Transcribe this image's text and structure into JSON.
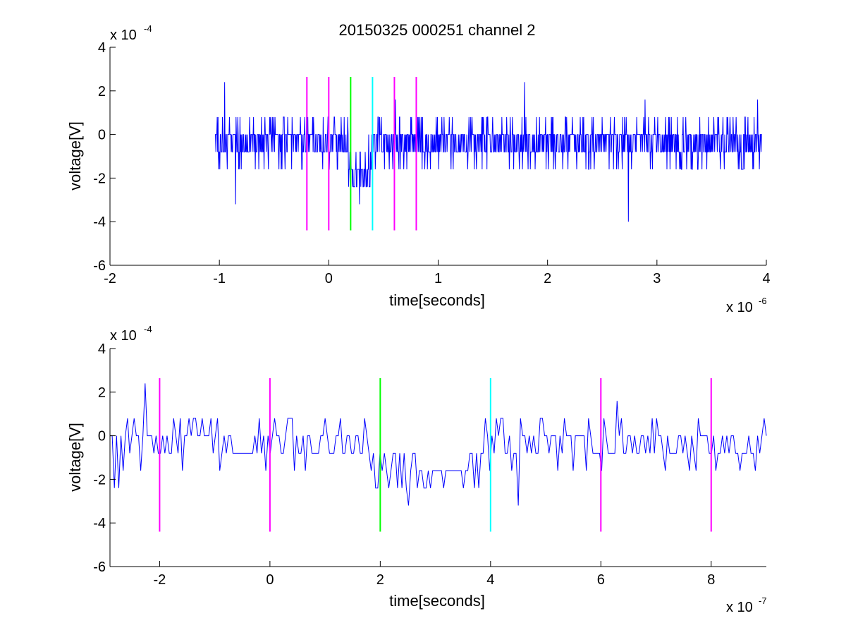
{
  "chart_data": [
    {
      "type": "line",
      "title": "20150325 000251 channel 2",
      "xlabel": "time[seconds]",
      "ylabel": "voltage[V]",
      "x_multiplier_base": "x 10",
      "x_multiplier_exp": "-6",
      "y_multiplier_base": "x 10",
      "y_multiplier_exp": "-4",
      "xlim": [
        -2e-06,
        4e-06
      ],
      "ylim": [
        -0.0006,
        0.0004
      ],
      "xticks": [
        -2e-06,
        -1e-06,
        0,
        1e-06,
        2e-06,
        3e-06,
        4e-06
      ],
      "xtick_labels": [
        "-2",
        "-1",
        "0",
        "1",
        "2",
        "3",
        "4"
      ],
      "yticks": [
        -0.0006,
        -0.0004,
        -0.0002,
        0,
        0.0002,
        0.0004
      ],
      "ytick_labels": [
        "-6",
        "-4",
        "-2",
        "0",
        "2",
        "4"
      ],
      "grid": false,
      "signal": {
        "color": "#0000ff",
        "x_start": -1.04e-06,
        "x_end": 3.96e-06,
        "quantization_step": 8e-05,
        "dip_start": 1.8e-07,
        "dip_end": 3.9e-07,
        "notable_points": [
          {
            "x": -9.5e-07,
            "y": 0.00024
          },
          {
            "x": -8.5e-07,
            "y": -0.00032
          },
          {
            "x": 2.8e-07,
            "y": -0.00032
          },
          {
            "x": 1.79e-06,
            "y": 0.00024
          },
          {
            "x": 2.74e-06,
            "y": -0.0004
          },
          {
            "x": 3.92e-06,
            "y": 0.00016
          }
        ]
      },
      "markers": [
        {
          "x": -2e-07,
          "color": "#ff00ff"
        },
        {
          "x": 0,
          "color": "#ff00ff"
        },
        {
          "x": 2e-07,
          "color": "#00ff00"
        },
        {
          "x": 4e-07,
          "color": "#00ffff"
        },
        {
          "x": 6e-07,
          "color": "#ff00ff"
        },
        {
          "x": 8e-07,
          "color": "#ff00ff"
        }
      ],
      "marker_range": [
        -0.00044,
        0.000264
      ]
    },
    {
      "type": "line",
      "title": "",
      "xlabel": "time[seconds]",
      "ylabel": "voltage[V]",
      "x_multiplier_base": "x 10",
      "x_multiplier_exp": "-7",
      "y_multiplier_base": "x 10",
      "y_multiplier_exp": "-4",
      "xlim": [
        -2.9e-07,
        9e-07
      ],
      "ylim": [
        -0.0006,
        0.0004
      ],
      "xticks": [
        -2e-07,
        0,
        2e-07,
        4e-07,
        6e-07,
        8e-07
      ],
      "xtick_labels": [
        "-2",
        "0",
        "2",
        "4",
        "6",
        "8"
      ],
      "yticks": [
        -0.0006,
        -0.0004,
        -0.0002,
        0,
        0.0002,
        0.0004
      ],
      "ytick_labels": [
        "-6",
        "-4",
        "-2",
        "0",
        "2",
        "4"
      ],
      "grid": false,
      "signal": {
        "color": "#0000ff",
        "x_start": -2.9e-07,
        "x_end": 9e-07,
        "quantization_step": 8e-05,
        "dip_start": 1.8e-07,
        "dip_end": 3.9e-07,
        "notable_points": [
          {
            "x": -2.76e-07,
            "y": -0.00024
          },
          {
            "x": -2.27e-07,
            "y": 0.00024
          },
          {
            "x": 2.5e-07,
            "y": -0.00032
          },
          {
            "x": 4.5e-07,
            "y": -0.00032
          },
          {
            "x": 6.3e-07,
            "y": 0.00016
          },
          {
            "x": 8.9e-07,
            "y": -8e-05
          }
        ]
      },
      "markers": [
        {
          "x": -2e-07,
          "color": "#ff00ff"
        },
        {
          "x": 0,
          "color": "#ff00ff"
        },
        {
          "x": 2e-07,
          "color": "#00ff00"
        },
        {
          "x": 4e-07,
          "color": "#00ffff"
        },
        {
          "x": 6e-07,
          "color": "#ff00ff"
        },
        {
          "x": 8e-07,
          "color": "#ff00ff"
        }
      ],
      "marker_range": [
        -0.00044,
        0.000264
      ]
    }
  ]
}
